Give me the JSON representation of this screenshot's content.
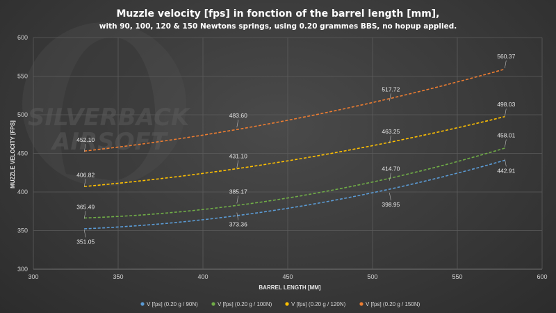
{
  "chart_data": {
    "type": "line",
    "title": "Muzzle velocity [fps] in fonction of the barrel length [mm],",
    "subtitle": "with 90, 100, 120 & 150 Newtons springs, using 0.20 grammes BBS, no hopup applied.",
    "xlabel": "BARREL LENGTH [MM]",
    "ylabel": "MUZZLE VELOCITY [FPS]",
    "xlim": [
      300,
      600
    ],
    "ylim": [
      300,
      600
    ],
    "x_ticks": [
      "300",
      "350",
      "400",
      "450",
      "500",
      "550",
      "600"
    ],
    "y_ticks": [
      "300",
      "350",
      "400",
      "450",
      "500",
      "550",
      "600"
    ],
    "grid": true,
    "legend_position": "bottom",
    "line_style": "dashed smooth trendline",
    "watermark": "SILVERBACK AIRSOFT",
    "series": [
      {
        "name": "V [fps] (0.20 g / 90N)",
        "color": "#5b9bd5",
        "x": [
          330,
          420,
          510,
          578
        ],
        "values": [
          351.05,
          373.36,
          398.95,
          442.91
        ],
        "labels": [
          "351.05",
          "373.36",
          "398.95",
          "442.91"
        ]
      },
      {
        "name": "V [fps] (0.20 g / 100N)",
        "color": "#70ad47",
        "x": [
          330,
          420,
          510,
          578
        ],
        "values": [
          365.49,
          385.17,
          414.7,
          458.01
        ],
        "labels": [
          "365.49",
          "385.17",
          "414.70",
          "458.01"
        ]
      },
      {
        "name": "V [fps] (0.20 g / 120N)",
        "color": "#ffc000",
        "x": [
          330,
          420,
          510,
          578
        ],
        "values": [
          406.82,
          431.1,
          463.25,
          498.03
        ],
        "labels": [
          "406.82",
          "431.10",
          "463.25",
          "498.03"
        ]
      },
      {
        "name": "V [fps] (0.20 g / 150N)",
        "color": "#ed7d31",
        "x": [
          330,
          420,
          510,
          578
        ],
        "values": [
          452.1,
          483.6,
          517.72,
          560.37
        ],
        "labels": [
          "452.10",
          "483.60",
          "517.72",
          "560.37"
        ]
      }
    ]
  }
}
